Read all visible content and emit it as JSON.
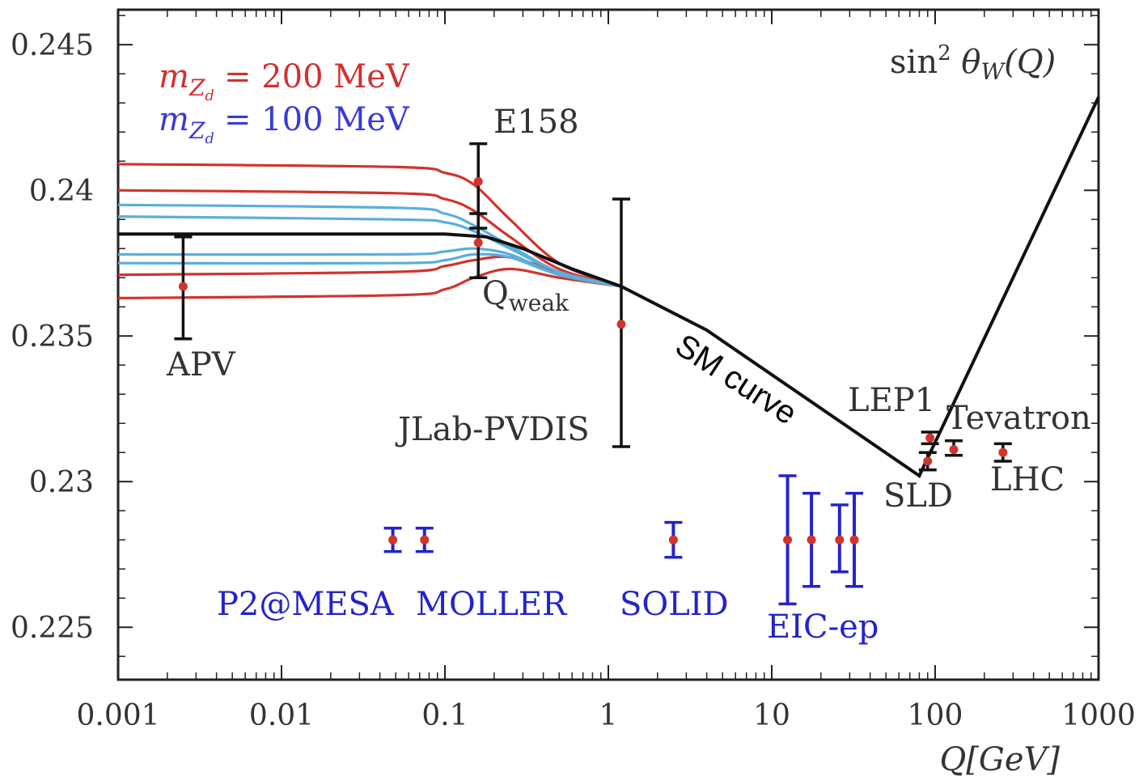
{
  "chart_data": {
    "type": "scatter",
    "x_scale": "log",
    "xlim": [
      0.001,
      1000
    ],
    "ylim": [
      0.2232,
      0.2462
    ],
    "x_ticks": [
      "0.001",
      "0.01",
      "0.1",
      "1",
      "10",
      "100",
      "1000"
    ],
    "x_tick_values": [
      0.001,
      0.01,
      0.1,
      1,
      10,
      100,
      1000
    ],
    "y_ticks": [
      "0.225",
      "0.23",
      "0.235",
      "0.24",
      "0.245"
    ],
    "y_tick_values": [
      0.225,
      0.23,
      0.235,
      0.24,
      0.245
    ],
    "xlabel": "Q[GeV]",
    "ylabel": "",
    "title": "",
    "grid": false,
    "legend": {
      "placement": "top-left",
      "entries": [
        {
          "lhs": "m",
          "sub": "Z",
          "subsub": "d",
          "rhs": "= 200 MeV",
          "color": "#d32f2f"
        },
        {
          "lhs": "m",
          "sub": "Z",
          "subsub": "d",
          "rhs": "= 100 MeV",
          "color": "#3a3ad6"
        }
      ]
    },
    "curve_label": {
      "text": "sin",
      "sup": "2",
      "theta": " θ",
      "sub": "W",
      "arg": "(Q)"
    },
    "sm_curve": {
      "name": "SM curve",
      "color": "#111111",
      "x": [
        0.001,
        0.01,
        0.1,
        0.18,
        0.3,
        0.6,
        1.2,
        4,
        80,
        1000
      ],
      "y": [
        0.2385,
        0.2385,
        0.2385,
        0.2384,
        0.238,
        0.2373,
        0.2367,
        0.2352,
        0.2302,
        0.2432
      ]
    },
    "dark_z_curves": [
      {
        "mass": "200 MeV",
        "color": "#d0342c",
        "x": [
          0.001,
          0.05,
          0.1,
          0.15,
          0.25,
          0.5,
          1.2
        ],
        "y": [
          0.2409,
          0.2408,
          0.2406,
          0.2402,
          0.239,
          0.2375,
          0.2367
        ]
      },
      {
        "mass": "200 MeV",
        "color": "#d0342c",
        "x": [
          0.001,
          0.05,
          0.1,
          0.15,
          0.25,
          0.5,
          1.2
        ],
        "y": [
          0.24,
          0.2399,
          0.2397,
          0.2393,
          0.2384,
          0.2373,
          0.2367
        ]
      },
      {
        "mass": "200 MeV",
        "color": "#d0342c",
        "x": [
          0.001,
          0.05,
          0.1,
          0.15,
          0.25,
          0.5,
          1.2
        ],
        "y": [
          0.2371,
          0.2372,
          0.2374,
          0.2376,
          0.2377,
          0.2372,
          0.2367
        ]
      },
      {
        "mass": "200 MeV",
        "color": "#d0342c",
        "x": [
          0.001,
          0.05,
          0.1,
          0.15,
          0.25,
          0.5,
          1.2
        ],
        "y": [
          0.2363,
          0.2364,
          0.2366,
          0.237,
          0.2373,
          0.237,
          0.2367
        ]
      },
      {
        "mass": "100 MeV",
        "color": "#5aaedc",
        "x": [
          0.001,
          0.05,
          0.1,
          0.15,
          0.25,
          0.5,
          1.2
        ],
        "y": [
          0.2395,
          0.2394,
          0.2392,
          0.2388,
          0.2381,
          0.2372,
          0.2367
        ]
      },
      {
        "mass": "100 MeV",
        "color": "#5aaedc",
        "x": [
          0.001,
          0.05,
          0.1,
          0.15,
          0.25,
          0.5,
          1.2
        ],
        "y": [
          0.2391,
          0.239,
          0.2389,
          0.2386,
          0.238,
          0.2372,
          0.2367
        ]
      },
      {
        "mass": "100 MeV",
        "color": "#5aaedc",
        "x": [
          0.001,
          0.05,
          0.1,
          0.15,
          0.25,
          0.5,
          1.2
        ],
        "y": [
          0.2378,
          0.2378,
          0.2379,
          0.238,
          0.2378,
          0.2371,
          0.2367
        ]
      },
      {
        "mass": "100 MeV",
        "color": "#5aaedc",
        "x": [
          0.001,
          0.05,
          0.1,
          0.15,
          0.25,
          0.5,
          1.2
        ],
        "y": [
          0.2375,
          0.2375,
          0.2376,
          0.2378,
          0.2377,
          0.2371,
          0.2367
        ]
      }
    ],
    "measurements": [
      {
        "name": "APV",
        "x": 0.0025,
        "y": 0.2367,
        "ylo": 0.2349,
        "yhi": 0.2384,
        "color": "#111111"
      },
      {
        "name": "E158",
        "x": 0.16,
        "y": 0.2403,
        "ylo": 0.2387,
        "yhi": 0.2416,
        "color": "#111111"
      },
      {
        "name": "Qweak",
        "x": 0.16,
        "y": 0.2382,
        "ylo": 0.237,
        "yhi": 0.2392,
        "color": "#111111"
      },
      {
        "name": "JLab-PVDIS",
        "x": 1.2,
        "y": 0.2354,
        "ylo": 0.2312,
        "yhi": 0.2397,
        "color": "#111111"
      },
      {
        "name": "LEP1",
        "x": 93,
        "y": 0.2315,
        "ylo": 0.2313,
        "yhi": 0.2317,
        "color": "#111111"
      },
      {
        "name": "SLD",
        "x": 90,
        "y": 0.2307,
        "ylo": 0.2304,
        "yhi": 0.231,
        "color": "#111111"
      },
      {
        "name": "Tevatron",
        "x": 130,
        "y": 0.2311,
        "ylo": 0.2309,
        "yhi": 0.2314,
        "color": "#111111"
      },
      {
        "name": "LHC",
        "x": 260,
        "y": 0.231,
        "ylo": 0.2307,
        "yhi": 0.2313,
        "color": "#111111"
      }
    ],
    "projections": [
      {
        "name": "P2@MESA",
        "x": 0.048,
        "y": 0.228,
        "ylo": 0.2276,
        "yhi": 0.2284,
        "color": "#2323cc"
      },
      {
        "name": "MOLLER",
        "x": 0.075,
        "y": 0.228,
        "ylo": 0.2276,
        "yhi": 0.2284,
        "color": "#2323cc"
      },
      {
        "name": "SOLID",
        "x": 2.5,
        "y": 0.228,
        "ylo": 0.2274,
        "yhi": 0.2286,
        "color": "#2323cc"
      },
      {
        "name": "EIC-ep",
        "x": 12.5,
        "y": 0.228,
        "ylo": 0.2258,
        "yhi": 0.2302,
        "color": "#2323cc"
      },
      {
        "name": "EIC-ep",
        "x": 17.5,
        "y": 0.228,
        "ylo": 0.2264,
        "yhi": 0.2296,
        "color": "#2323cc"
      },
      {
        "name": "EIC-ep",
        "x": 26,
        "y": 0.228,
        "ylo": 0.2269,
        "yhi": 0.2292,
        "color": "#2323cc"
      },
      {
        "name": "EIC-ep",
        "x": 32,
        "y": 0.228,
        "ylo": 0.2264,
        "yhi": 0.2296,
        "color": "#2323cc"
      }
    ],
    "point_color": "#d0342c",
    "labels": {
      "apv": "APV",
      "e158": "E158",
      "qweak": "Q",
      "qweak_sub": "weak",
      "jlab": "JLab-PVDIS",
      "lep1": "LEP1",
      "tevatron": "Tevatron",
      "sld": "SLD",
      "lhc": "LHC",
      "p2": "P2@MESA",
      "moller": "MOLLER",
      "solid": "SOLID",
      "eic": "EIC-ep",
      "sm": "SM curve"
    }
  }
}
